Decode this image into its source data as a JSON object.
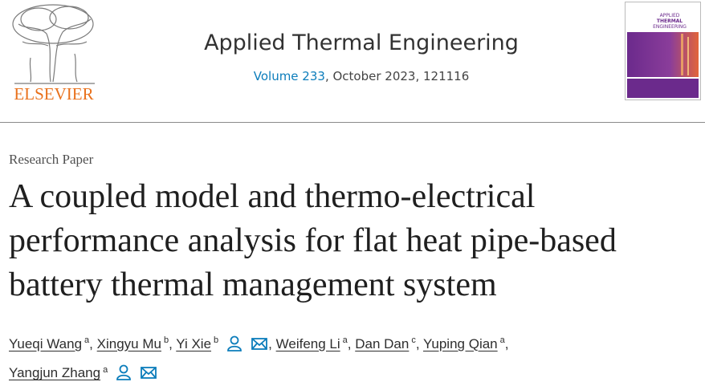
{
  "header": {
    "publisher": "ELSEVIER",
    "journal": "Applied Thermal Engineering",
    "volume": "Volume 233",
    "issue_info": ", October 2023, 121116",
    "cover_title": [
      "APPLIED",
      "THERMAL",
      "ENGINEERING"
    ]
  },
  "article_type": "Research Paper",
  "title": "A coupled model and thermo-electrical performance analysis for flat heat pipe-based battery thermal management system",
  "separator": ",",
  "authors": [
    {
      "name": "Yueqi Wang",
      "affiliation": "a",
      "contact": false
    },
    {
      "name": "Xingyu Mu",
      "affiliation": "b",
      "contact": false
    },
    {
      "name": "Yi Xie",
      "affiliation": "b",
      "contact": true
    },
    {
      "name": "Weifeng Li",
      "affiliation": "a",
      "contact": false
    },
    {
      "name": "Dan Dan",
      "affiliation": "c",
      "contact": false
    },
    {
      "name": "Yuping Qian",
      "affiliation": "a",
      "contact": false
    },
    {
      "name": "Yangjun Zhang",
      "affiliation": "a",
      "contact": true
    }
  ]
}
